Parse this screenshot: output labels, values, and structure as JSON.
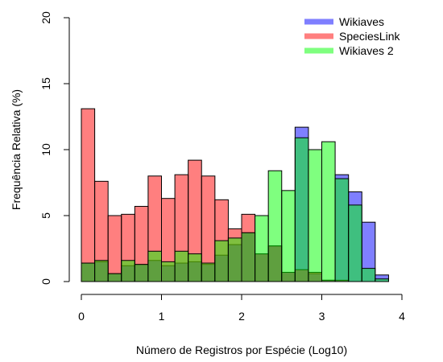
{
  "chart_data": {
    "type": "bar",
    "xlabel": "Número de Registros por Espécie (Log10)",
    "ylabel": "Frequência Relativa (%)",
    "xlim": [
      0,
      4
    ],
    "ylim": [
      0,
      20
    ],
    "x_ticks": [
      "0",
      "1",
      "2",
      "3",
      "4"
    ],
    "y_ticks": [
      "0",
      "5",
      "10",
      "15",
      "20"
    ],
    "grid": false,
    "legend_position": "top-right",
    "bin_width": 0.1667,
    "bin_starts": [
      0,
      0.1667,
      0.3333,
      0.5,
      0.6667,
      0.8333,
      1.0,
      1.1667,
      1.3333,
      1.5,
      1.6667,
      1.8333,
      2.0,
      2.1667,
      2.3333,
      2.5,
      2.6667,
      2.8333,
      3.0,
      3.1667,
      3.3333,
      3.5,
      3.6667
    ],
    "series": [
      {
        "name": "Wikiaves",
        "color": "#0000ff",
        "values": [
          1.4,
          1.5,
          0.6,
          1.2,
          1.3,
          1.6,
          1.2,
          1.4,
          1.5,
          1.3,
          2.0,
          2.8,
          3.7,
          2.1,
          2.7,
          0.7,
          11.7,
          0.6,
          0.1,
          8.1,
          6.8,
          4.5,
          0.5
        ]
      },
      {
        "name": "SpeciesLink",
        "color": "#ff0000",
        "values": [
          13.1,
          7.6,
          5.0,
          5.1,
          5.7,
          8.0,
          6.3,
          8.1,
          9.2,
          8.0,
          6.2,
          4.0,
          5.1,
          2.1,
          2.7,
          0.7,
          0.9,
          0.7,
          0.1,
          0.1,
          0,
          0,
          0
        ]
      },
      {
        "name": "Wikiaves 2",
        "color": "#00ff00",
        "values": [
          1.4,
          1.6,
          0.6,
          1.6,
          1.3,
          2.3,
          1.5,
          2.3,
          2.1,
          1.4,
          3.1,
          3.3,
          3.7,
          5.0,
          8.4,
          6.9,
          10.9,
          10.0,
          10.6,
          7.8,
          5.8,
          1.0,
          0.2
        ]
      }
    ]
  }
}
